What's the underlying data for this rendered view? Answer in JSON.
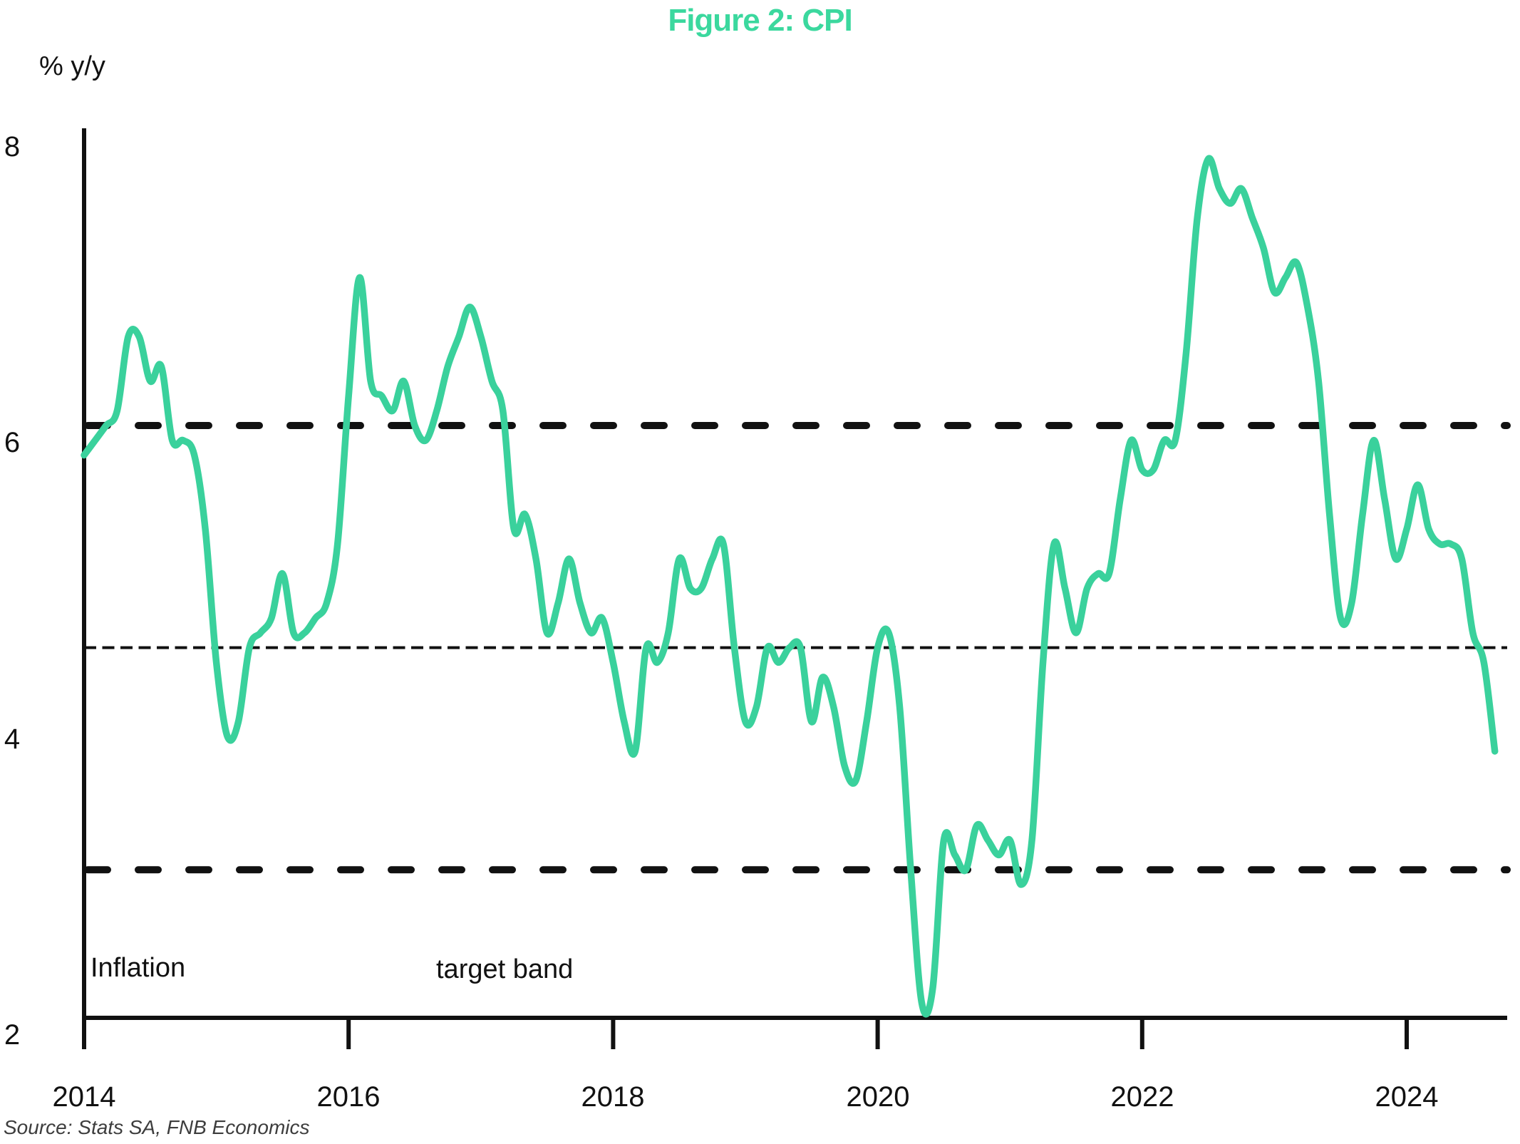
{
  "source_note": "Source: Stats SA, FNB Economics",
  "colors": {
    "accent_green": "#3bd89e",
    "line_green": "#3ad19c",
    "axis_black": "#111111",
    "source_gray": "#3d3d3d"
  },
  "chart_data": {
    "type": "line",
    "title": "Figure 2: CPI",
    "ylabel": "% y/y",
    "xlabel": "",
    "grid": false,
    "legend": "none",
    "ylim": [
      2,
      8
    ],
    "xlim": [
      2014,
      2024.75
    ],
    "y_ticks": [
      2,
      4,
      6,
      8
    ],
    "x_tick_years": [
      2014,
      2016,
      2018,
      2020,
      2022,
      2024
    ],
    "x_tick_labels": [
      "2014",
      "2016",
      "2018",
      "2020",
      "2022",
      "2024"
    ],
    "annotations": [
      {
        "text": "Inflation"
      },
      {
        "text": "target band"
      }
    ],
    "reference_lines": [
      {
        "name": "inflation-target-upper",
        "value": 6,
        "style": "dashed-thick"
      },
      {
        "name": "inflation-target-lower",
        "value": 3,
        "style": "dashed-thick"
      },
      {
        "name": "inflation-target-midpoint",
        "value": 4.5,
        "style": "dotted"
      }
    ],
    "series": [
      {
        "name": "CPI y/y %",
        "start": "2014-01",
        "frequency": "monthly",
        "values": [
          5.8,
          5.9,
          6.0,
          6.1,
          6.6,
          6.6,
          6.3,
          6.4,
          5.9,
          5.9,
          5.8,
          5.3,
          4.4,
          3.9,
          4.0,
          4.5,
          4.6,
          4.7,
          5.0,
          4.6,
          4.6,
          4.7,
          4.8,
          5.2,
          6.2,
          7.0,
          6.3,
          6.2,
          6.1,
          6.3,
          6.0,
          5.9,
          6.1,
          6.4,
          6.6,
          6.8,
          6.6,
          6.3,
          6.1,
          5.3,
          5.4,
          5.1,
          4.6,
          4.8,
          5.1,
          4.8,
          4.6,
          4.7,
          4.4,
          4.0,
          3.8,
          4.5,
          4.4,
          4.6,
          5.1,
          4.9,
          4.9,
          5.1,
          5.2,
          4.5,
          4.0,
          4.1,
          4.5,
          4.4,
          4.5,
          4.5,
          4.0,
          4.3,
          4.1,
          3.7,
          3.6,
          4.0,
          4.5,
          4.6,
          4.1,
          3.0,
          2.1,
          2.2,
          3.2,
          3.1,
          3.0,
          3.3,
          3.2,
          3.1,
          3.2,
          2.9,
          3.2,
          4.4,
          5.2,
          4.9,
          4.6,
          4.9,
          5.0,
          5.0,
          5.5,
          5.9,
          5.7,
          5.7,
          5.9,
          5.9,
          6.5,
          7.4,
          7.8,
          7.6,
          7.5,
          7.6,
          7.4,
          7.2,
          6.9,
          7.0,
          7.1,
          6.8,
          6.3,
          5.4,
          4.7,
          4.8,
          5.4,
          5.9,
          5.5,
          5.1,
          5.3,
          5.6,
          5.3,
          5.2,
          5.2,
          5.1,
          4.6,
          4.4,
          3.8
        ]
      }
    ]
  }
}
